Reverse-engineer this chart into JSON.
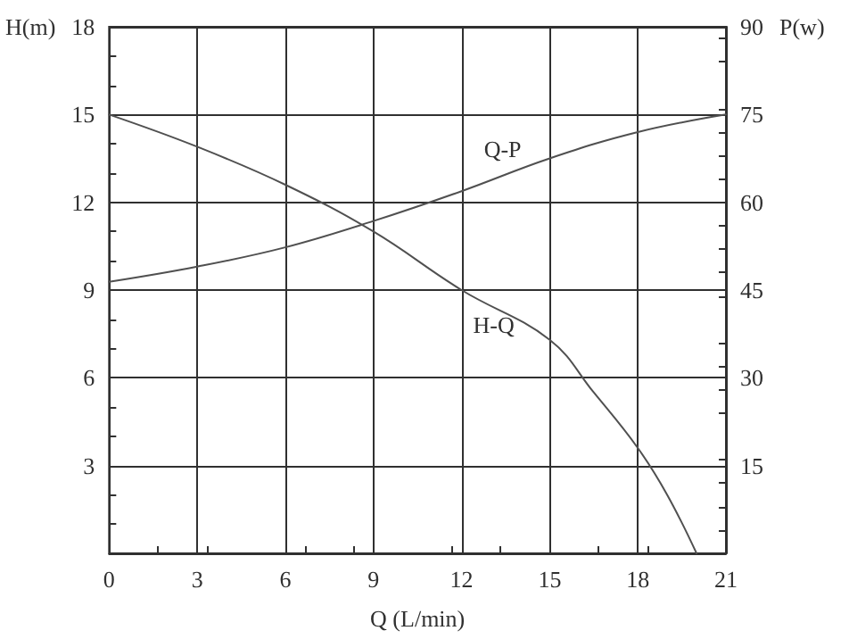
{
  "chart_data": {
    "type": "line",
    "xlabel": "Q (L/min)",
    "ylabel": "H(m)",
    "y2label": "P(w)",
    "xlim": [
      0,
      21
    ],
    "xticks": [
      0,
      3,
      6,
      9,
      12,
      15,
      18,
      21
    ],
    "ylim": [
      0,
      18
    ],
    "yticks": [
      3,
      6,
      9,
      12,
      15,
      18
    ],
    "y2lim": [
      0,
      90
    ],
    "y2ticks": [
      15,
      30,
      45,
      60,
      75,
      90
    ],
    "grid": true,
    "legend": false,
    "marker": "none",
    "line_style": "solid",
    "series": [
      {
        "name": "H-Q",
        "color": "#505050",
        "x": [
          0,
          3,
          6,
          9,
          12,
          15,
          16.5,
          18,
          19,
          20
        ],
        "values": [
          15,
          13.9,
          12.6,
          11.0,
          9.0,
          7.3,
          5.5,
          3.6,
          2.0,
          0
        ]
      },
      {
        "name": "Q-P",
        "color": "#505050",
        "axis": "y2",
        "x": [
          0,
          3,
          6,
          9,
          12,
          15,
          18,
          21
        ],
        "values": [
          46.4,
          49,
          52.3,
          56.8,
          61.9,
          67.5,
          72,
          75
        ]
      }
    ]
  }
}
